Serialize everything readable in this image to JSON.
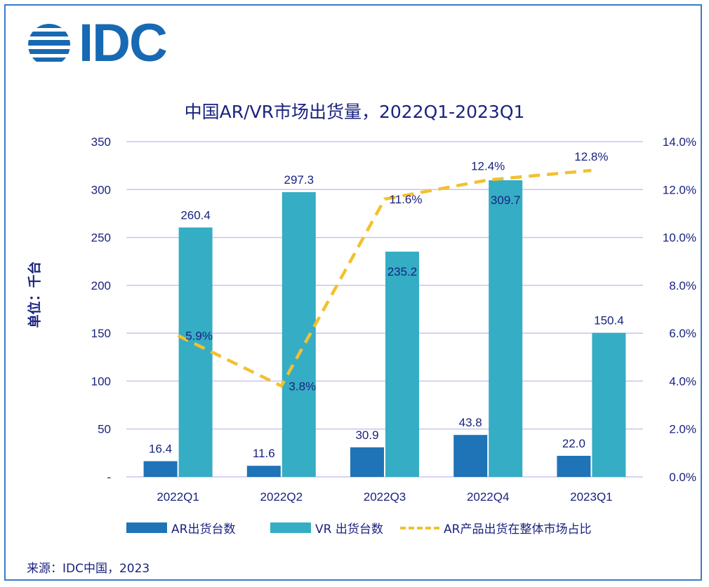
{
  "brand": {
    "logo_text": "IDC",
    "logo_color": "#1769b3"
  },
  "source": "来源：IDC中国，2023",
  "colors": {
    "ar": "#1f73b7",
    "vr": "#35adc5",
    "line": "#f2c12e",
    "grid": "#c9c5ef",
    "text": "#1a237e"
  },
  "chart_data": {
    "type": "bar",
    "title": "中国AR/VR市场出货量，2022Q1-2023Q1",
    "ylabel": "单位：千台",
    "categories": [
      "2022Q1",
      "2022Q2",
      "2022Q3",
      "2022Q4",
      "2023Q1"
    ],
    "series": [
      {
        "name": "AR出货台数",
        "type": "bar",
        "axis": "left",
        "values": [
          16.4,
          11.6,
          30.9,
          43.8,
          22.0
        ],
        "labels": [
          "16.4",
          "11.6",
          "30.9",
          "43.8",
          "22.0"
        ]
      },
      {
        "name": "VR 出货台数",
        "type": "bar",
        "axis": "left",
        "values": [
          260.4,
          297.3,
          235.2,
          309.7,
          150.4
        ],
        "labels": [
          "260.4",
          "297.3",
          "235.2",
          "309.7",
          "150.4"
        ]
      },
      {
        "name": "AR产品出货在整体市场占比",
        "type": "line",
        "style": "dashed",
        "axis": "right",
        "values": [
          5.9,
          3.8,
          11.6,
          12.4,
          12.8
        ],
        "labels": [
          "5.9%",
          "3.8%",
          "11.6%",
          "12.4%",
          "12.8%"
        ]
      }
    ],
    "ylim": [
      0,
      350
    ],
    "y_ticks": [
      "-",
      "50",
      "100",
      "150",
      "200",
      "250",
      "300",
      "350"
    ],
    "y2lim": [
      0,
      14
    ],
    "y2_ticks": [
      "0.0%",
      "2.0%",
      "4.0%",
      "6.0%",
      "8.0%",
      "10.0%",
      "12.0%",
      "14.0%"
    ],
    "grid": true,
    "legend_position": "bottom"
  }
}
